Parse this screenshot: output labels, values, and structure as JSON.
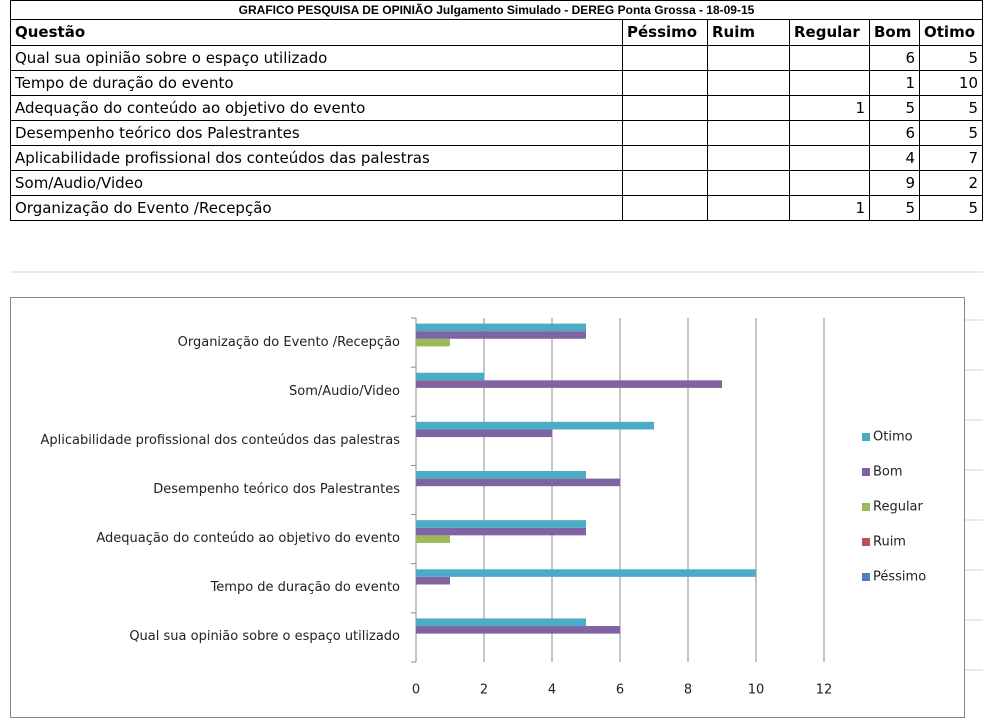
{
  "table": {
    "title": "GRAFICO PESQUISA DE OPINIÃO Julgamento Simulado - DEREG Ponta Grossa - 18-09-15",
    "headers": [
      "Questão",
      "Péssimo",
      "Ruim",
      "Regular",
      "Bom",
      "Otimo"
    ],
    "rows": [
      {
        "label": "Qual sua opinião sobre o espaço utilizado",
        "cells": [
          null,
          null,
          null,
          6,
          5
        ]
      },
      {
        "label": "Tempo de duração do evento",
        "cells": [
          null,
          null,
          null,
          1,
          10
        ]
      },
      {
        "label": "Adequação do conteúdo ao objetivo do evento",
        "cells": [
          null,
          null,
          1,
          5,
          5
        ]
      },
      {
        "label": "Desempenho teórico dos Palestrantes",
        "cells": [
          null,
          null,
          null,
          6,
          5
        ]
      },
      {
        "label": "Aplicabilidade profissional dos conteúdos das palestras",
        "cells": [
          null,
          null,
          null,
          4,
          7
        ]
      },
      {
        "label": "Som/Audio/Video",
        "cells": [
          null,
          null,
          null,
          9,
          2
        ]
      },
      {
        "label": "Organização do Evento /Recepção",
        "cells": [
          null,
          null,
          1,
          5,
          5
        ]
      }
    ]
  },
  "chart_data": {
    "type": "hbar",
    "categories": [
      "Qual sua opinião sobre o espaço utilizado",
      "Tempo de duração do evento",
      "Adequação do conteúdo ao objetivo do evento",
      "Desempenho teórico dos Palestrantes",
      "Aplicabilidade profissional dos conteúdos das palestras",
      "Som/Audio/Video",
      "Organização do Evento /Recepção"
    ],
    "series": [
      {
        "name": "Péssimo",
        "color": "#4f81bd",
        "values": [
          null,
          null,
          null,
          null,
          null,
          null,
          null
        ]
      },
      {
        "name": "Ruim",
        "color": "#c0504d",
        "values": [
          null,
          null,
          null,
          null,
          null,
          null,
          null
        ]
      },
      {
        "name": "Regular",
        "color": "#9bbb59",
        "values": [
          null,
          null,
          1,
          null,
          null,
          null,
          1
        ]
      },
      {
        "name": "Bom",
        "color": "#8064a2",
        "values": [
          6,
          1,
          5,
          6,
          4,
          9,
          5
        ]
      },
      {
        "name": "Otimo",
        "color": "#4bacc6",
        "values": [
          5,
          10,
          5,
          5,
          7,
          2,
          5
        ]
      }
    ],
    "xlim": [
      0,
      12
    ],
    "xticks": [
      0,
      2,
      4,
      6,
      8,
      10,
      12
    ],
    "grid": true,
    "legend": "right"
  }
}
